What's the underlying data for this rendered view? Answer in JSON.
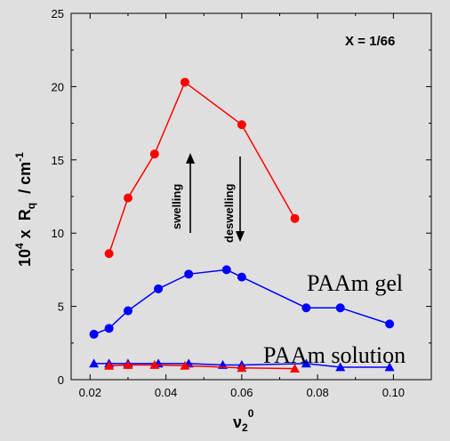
{
  "chart_data": {
    "type": "scatter",
    "xlim": [
      0.015,
      0.11
    ],
    "ylim": [
      0,
      25
    ],
    "x_ticks": [
      "0.02",
      "0.04",
      "0.06",
      "0.08",
      "0.10"
    ],
    "y_ticks": [
      "0",
      "5",
      "10",
      "15",
      "20",
      "25"
    ],
    "xlabel": {
      "main": "ν",
      "sub": "2",
      "sup": "0"
    },
    "ylabel": {
      "prefix": "10",
      "sup": "4",
      "mid": " x  R",
      "sub": "q",
      "unit": "  / cm",
      "unit_sup": "-1"
    },
    "annotations": {
      "ratio": "X = 1/66",
      "swelling": "swelling",
      "deswelling": "deswelling",
      "gel_label": "PAAm gel",
      "solution_label": "PAAm solution"
    },
    "series": [
      {
        "color": "#ff0000",
        "marker": "circle",
        "x": [
          0.025,
          0.03,
          0.037,
          0.045,
          0.06,
          0.074
        ],
        "y": [
          8.6,
          12.4,
          15.4,
          20.3,
          17.4,
          11.0
        ]
      },
      {
        "name": "PAAm gel",
        "color": "#0000ff",
        "marker": "circle",
        "x": [
          0.021,
          0.025,
          0.03,
          0.038,
          0.046,
          0.056,
          0.06,
          0.077,
          0.086,
          0.099
        ],
        "y": [
          3.1,
          3.5,
          4.7,
          6.2,
          7.2,
          7.5,
          7.0,
          4.9,
          4.9,
          3.8
        ]
      },
      {
        "name": "PAAm solution",
        "color": "#0000ff",
        "marker": "triangle",
        "x": [
          0.021,
          0.025,
          0.03,
          0.038,
          0.046,
          0.055,
          0.06,
          0.077,
          0.086,
          0.099
        ],
        "y": [
          1.1,
          1.1,
          1.1,
          1.1,
          1.1,
          1.0,
          1.0,
          1.1,
          0.85,
          0.85
        ]
      },
      {
        "color": "#ff0000",
        "marker": "triangle",
        "x": [
          0.025,
          0.03,
          0.037,
          0.045,
          0.06,
          0.074
        ],
        "y": [
          0.95,
          1.0,
          1.0,
          0.95,
          0.8,
          0.75
        ]
      }
    ]
  }
}
